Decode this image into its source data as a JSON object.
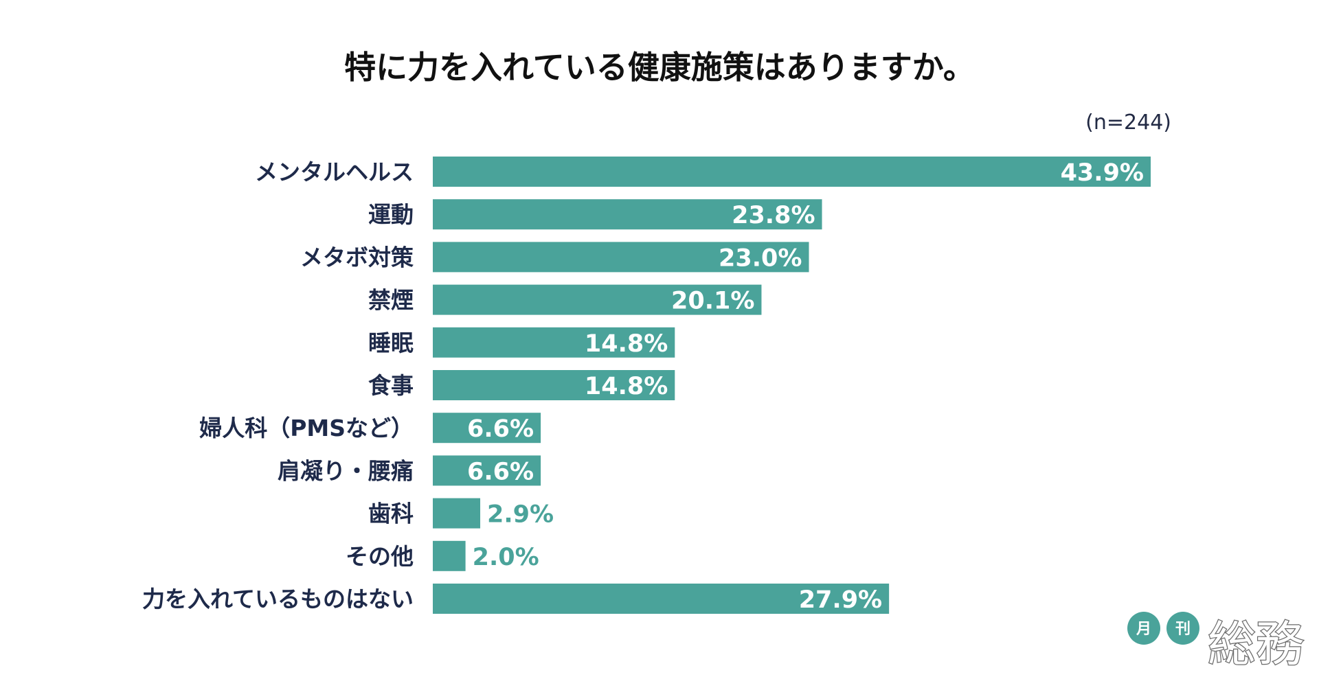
{
  "chart_data": {
    "type": "bar",
    "orientation": "horizontal",
    "title": "特に力を入れている健康施策はありますか。",
    "sample_size": "(n=244)",
    "categories": [
      "メンタルヘルス",
      "運動",
      "メタボ対策",
      "禁煙",
      "睡眠",
      "食事",
      "婦人科（PMSなど）",
      "肩凝り・腰痛",
      "歯科",
      "その他",
      "力を入れているものはない"
    ],
    "values": [
      43.9,
      23.8,
      23.0,
      20.1,
      14.8,
      14.8,
      6.6,
      6.6,
      2.9,
      2.0,
      27.9
    ],
    "value_labels": [
      "43.9%",
      "23.8%",
      "23.0%",
      "20.1%",
      "14.8%",
      "14.8%",
      "6.6%",
      "6.6%",
      "2.9%",
      "2.0%",
      "27.9%"
    ],
    "unit": "%",
    "xlim": [
      0,
      43.9
    ],
    "grid": false,
    "legend": "none",
    "bar_color": "#4aa39a"
  },
  "colors": {
    "bar": "#4aa39a",
    "inside_label": "#ffffff",
    "outside_label": "#4aa39a",
    "category_text": "#1e2a4a",
    "title_text": "#111111"
  },
  "logo": {
    "badge1": "月",
    "badge2": "刊",
    "main": "総務"
  }
}
